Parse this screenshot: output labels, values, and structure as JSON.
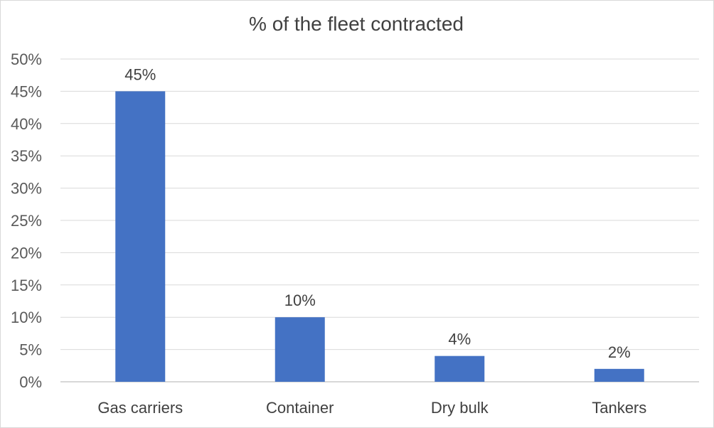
{
  "chart_data": {
    "type": "bar",
    "title": "% of the fleet contracted",
    "categories": [
      "Gas carriers",
      "Container",
      "Dry bulk",
      "Tankers"
    ],
    "values": [
      45,
      10,
      4,
      2
    ],
    "data_labels": [
      "45%",
      "10%",
      "4%",
      "2%"
    ],
    "xlabel": "",
    "ylabel": "",
    "ylim": [
      0,
      50
    ],
    "y_ticks": [
      0,
      5,
      10,
      15,
      20,
      25,
      30,
      35,
      40,
      45,
      50
    ],
    "y_tick_labels": [
      "0%",
      "5%",
      "10%",
      "15%",
      "20%",
      "25%",
      "30%",
      "35%",
      "40%",
      "45%",
      "50%"
    ],
    "grid": true,
    "legend": "none",
    "bar_color": "#4472C4"
  }
}
